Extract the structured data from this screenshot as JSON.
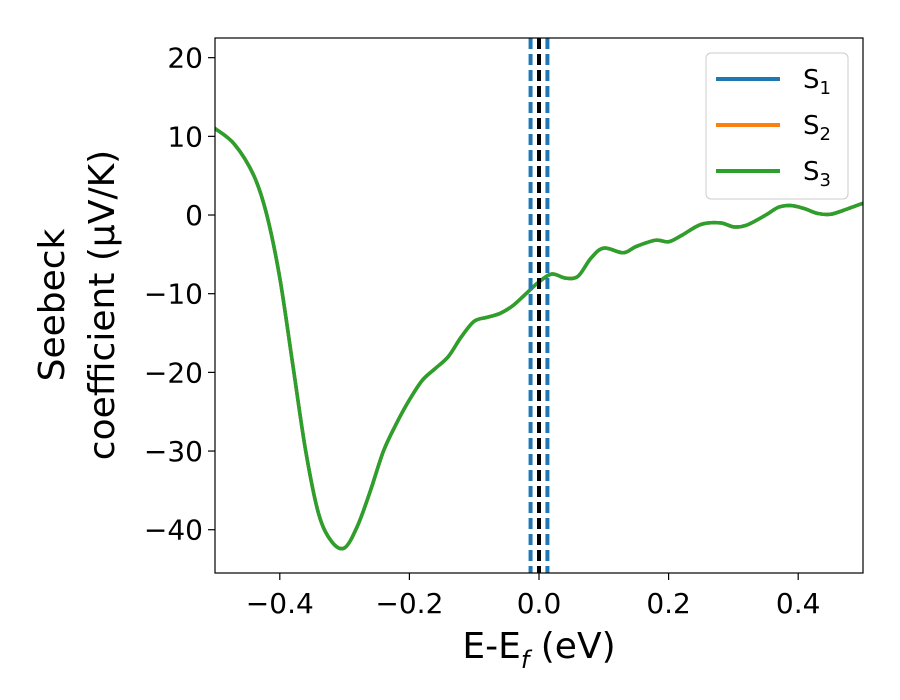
{
  "chart_data": {
    "type": "line",
    "xlabel": {
      "base": "E-E",
      "sub": "f",
      "suffix": " (eV)"
    },
    "ylabel": {
      "line1": "Seebeck",
      "line2": "coefficient  (μV/K)"
    },
    "xlim": [
      -0.5,
      0.5
    ],
    "ylim": [
      -45.5,
      22.5
    ],
    "xticks": [
      -0.4,
      -0.2,
      0.0,
      0.2,
      0.4
    ],
    "xtick_labels": [
      "−0.4",
      "−0.2",
      "0.0",
      "0.2",
      "0.4"
    ],
    "yticks": [
      20,
      10,
      0,
      -10,
      -20,
      -30,
      -40
    ],
    "ytick_labels": [
      "20",
      "10",
      "0",
      "−10",
      "−20",
      "−30",
      "−40"
    ],
    "grid": false,
    "legend_position": "top-right",
    "x": [
      -0.5,
      -0.47,
      -0.44,
      -0.42,
      -0.4,
      -0.38,
      -0.36,
      -0.34,
      -0.32,
      -0.3,
      -0.28,
      -0.26,
      -0.24,
      -0.22,
      -0.2,
      -0.18,
      -0.16,
      -0.14,
      -0.12,
      -0.1,
      -0.08,
      -0.06,
      -0.04,
      -0.02,
      0.0,
      0.02,
      0.04,
      0.06,
      0.08,
      0.1,
      0.13,
      0.15,
      0.18,
      0.2,
      0.22,
      0.25,
      0.28,
      0.3,
      0.32,
      0.35,
      0.37,
      0.39,
      0.41,
      0.43,
      0.45,
      0.47,
      0.5
    ],
    "series": [
      {
        "name": "S",
        "sub": "1",
        "color": "#1f77b4",
        "values": [
          11,
          9,
          5,
          0,
          -8,
          -19,
          -30,
          -38,
          -41.5,
          -42.3,
          -39.5,
          -35,
          -30,
          -26.5,
          -23.5,
          -21,
          -19.5,
          -18,
          -15.5,
          -13.5,
          -13,
          -12.5,
          -11.5,
          -10,
          -8.5,
          -7.5,
          -8,
          -7.8,
          -5.5,
          -4.2,
          -4.8,
          -4,
          -3.2,
          -3.4,
          -2.6,
          -1.2,
          -1,
          -1.5,
          -1.3,
          0,
          1,
          1.2,
          0.8,
          0.2,
          0.1,
          0.6,
          1.5
        ]
      },
      {
        "name": "S",
        "sub": "2",
        "color": "#ff7f0e",
        "values": [
          11,
          9,
          5,
          0,
          -8,
          -19,
          -30,
          -38,
          -41.5,
          -42.3,
          -39.5,
          -35,
          -30,
          -26.5,
          -23.5,
          -21,
          -19.5,
          -18,
          -15.5,
          -13.5,
          -13,
          -12.5,
          -11.5,
          -10,
          -8.5,
          -7.5,
          -8,
          -7.8,
          -5.5,
          -4.2,
          -4.8,
          -4,
          -3.2,
          -3.4,
          -2.6,
          -1.2,
          -1,
          -1.5,
          -1.3,
          0,
          1,
          1.2,
          0.8,
          0.2,
          0.1,
          0.6,
          1.5
        ]
      },
      {
        "name": "S",
        "sub": "3",
        "color": "#2ca02c",
        "values": [
          11,
          9,
          5,
          0,
          -8,
          -19,
          -30,
          -38,
          -41.5,
          -42.3,
          -39.5,
          -35,
          -30,
          -26.5,
          -23.5,
          -21,
          -19.5,
          -18,
          -15.5,
          -13.5,
          -13,
          -12.5,
          -11.5,
          -10,
          -8.5,
          -7.5,
          -8,
          -7.8,
          -5.5,
          -4.2,
          -4.8,
          -4,
          -3.2,
          -3.4,
          -2.6,
          -1.2,
          -1,
          -1.5,
          -1.3,
          0,
          1,
          1.2,
          0.8,
          0.2,
          0.1,
          0.6,
          1.5
        ]
      }
    ],
    "vlines": [
      {
        "x": 0.0,
        "color": "#000000",
        "style": "dashed"
      },
      {
        "x": -0.013,
        "color": "#1f77b4",
        "style": "dashed"
      },
      {
        "x": 0.013,
        "color": "#1f77b4",
        "style": "dashed"
      }
    ]
  }
}
